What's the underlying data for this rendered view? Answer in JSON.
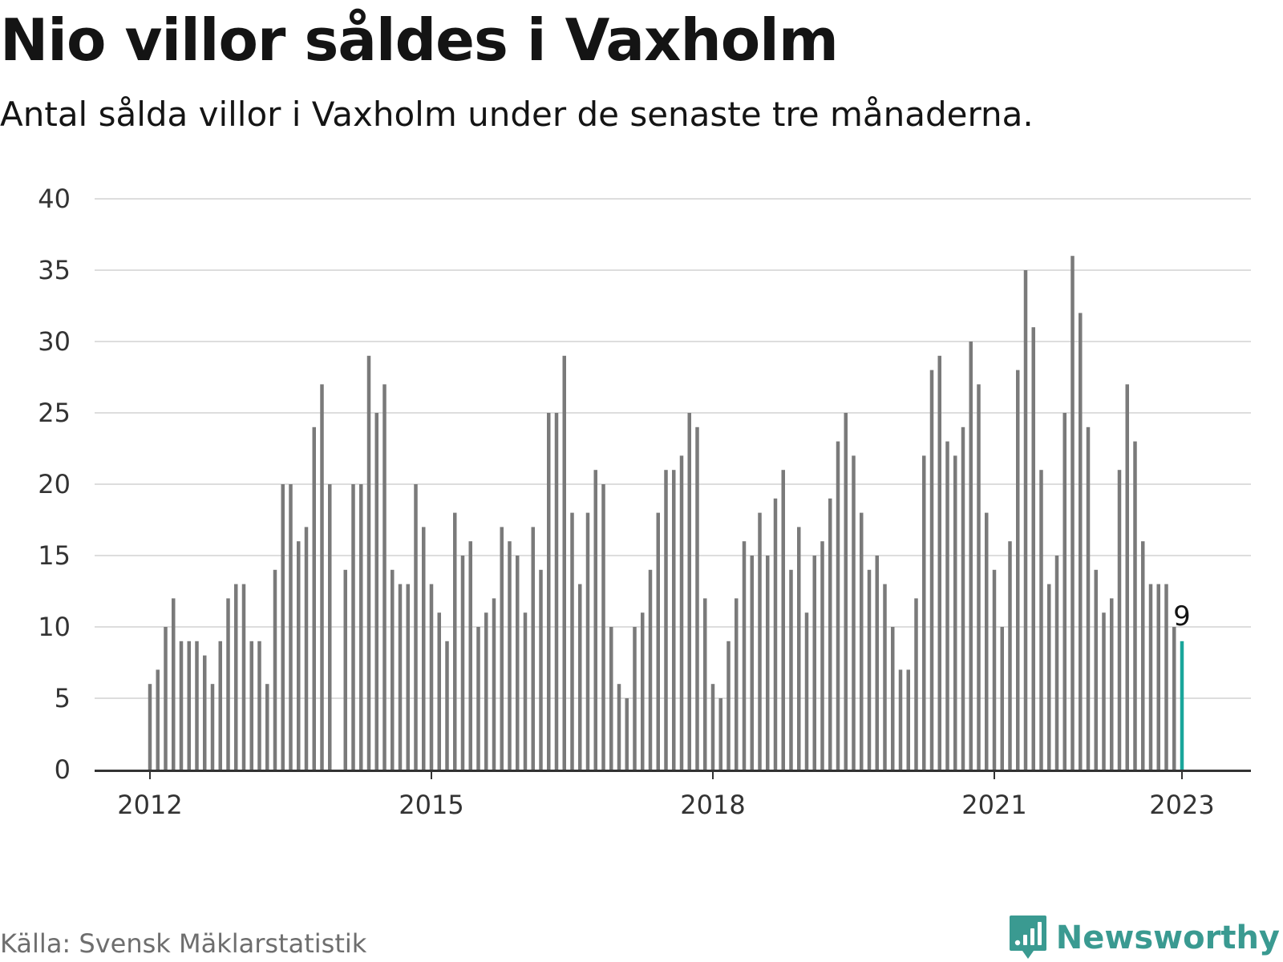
{
  "title": "Nio villor såldes i Vaxholm",
  "subtitle": "Antal sålda villor i Vaxholm under de senaste tre månaderna.",
  "source": "Källa: Svensk Mäklarstatistik",
  "logo_text": "Newsworthy",
  "colors": {
    "bar": "#7a7a7a",
    "highlight": "#1aa69b",
    "grid": "#dddddd",
    "axis": "#333333",
    "brand": "#3a9a91"
  },
  "chart_data": {
    "type": "bar",
    "title": "Nio villor såldes i Vaxholm",
    "xlabel": "",
    "ylabel": "",
    "ylim": [
      0,
      40
    ],
    "y_ticks": [
      0,
      5,
      10,
      15,
      20,
      25,
      30,
      35,
      40
    ],
    "x_ticks": [
      "2012",
      "2015",
      "2018",
      "2021",
      "2023"
    ],
    "x_tick_dates": [
      "2012-01",
      "2015-01",
      "2018-01",
      "2021-01",
      "2023-01"
    ],
    "grid": true,
    "highlight_last": true,
    "last_value_label": "9",
    "categories": [
      "2012-01",
      "2012-02",
      "2012-03",
      "2012-04",
      "2012-05",
      "2012-06",
      "2012-07",
      "2012-08",
      "2012-09",
      "2012-10",
      "2012-11",
      "2012-12",
      "2013-01",
      "2013-02",
      "2013-03",
      "2013-04",
      "2013-05",
      "2013-06",
      "2013-07",
      "2013-08",
      "2013-09",
      "2013-10",
      "2013-11",
      "2013-12",
      "2014-01",
      "2014-02",
      "2014-03",
      "2014-04",
      "2014-05",
      "2014-06",
      "2014-07",
      "2014-08",
      "2014-09",
      "2014-10",
      "2014-11",
      "2014-12",
      "2015-01",
      "2015-02",
      "2015-03",
      "2015-04",
      "2015-05",
      "2015-06",
      "2015-07",
      "2015-08",
      "2015-09",
      "2015-10",
      "2015-11",
      "2015-12",
      "2016-01",
      "2016-02",
      "2016-03",
      "2016-04",
      "2016-05",
      "2016-06",
      "2016-07",
      "2016-08",
      "2016-09",
      "2016-10",
      "2016-11",
      "2016-12",
      "2017-01",
      "2017-02",
      "2017-03",
      "2017-04",
      "2017-05",
      "2017-06",
      "2017-07",
      "2017-08",
      "2017-09",
      "2017-10",
      "2017-11",
      "2017-12",
      "2018-01",
      "2018-02",
      "2018-03",
      "2018-04",
      "2018-05",
      "2018-06",
      "2018-07",
      "2018-08",
      "2018-09",
      "2018-10",
      "2018-11",
      "2018-12",
      "2019-01",
      "2019-02",
      "2019-03",
      "2019-04",
      "2019-05",
      "2019-06",
      "2019-07",
      "2019-08",
      "2019-09",
      "2019-10",
      "2019-11",
      "2019-12",
      "2020-01",
      "2020-02",
      "2020-03",
      "2020-04",
      "2020-05",
      "2020-06",
      "2020-07",
      "2020-08",
      "2020-09",
      "2020-10",
      "2020-11",
      "2020-12",
      "2021-01",
      "2021-02",
      "2021-03",
      "2021-04",
      "2021-05",
      "2021-06",
      "2021-07",
      "2021-08",
      "2021-09",
      "2021-10",
      "2021-11",
      "2021-12",
      "2022-01",
      "2022-02",
      "2022-03",
      "2022-04",
      "2022-05",
      "2022-06",
      "2022-07",
      "2022-08",
      "2022-09",
      "2022-10",
      "2022-11",
      "2022-12",
      "2023-01"
    ],
    "values": [
      6,
      7,
      10,
      12,
      9,
      9,
      9,
      8,
      6,
      9,
      12,
      13,
      13,
      9,
      9,
      6,
      14,
      20,
      20,
      16,
      17,
      24,
      27,
      20,
      0,
      14,
      20,
      20,
      29,
      25,
      27,
      14,
      13,
      13,
      20,
      17,
      13,
      11,
      9,
      18,
      15,
      16,
      10,
      11,
      12,
      17,
      16,
      15,
      11,
      17,
      14,
      25,
      25,
      29,
      18,
      13,
      18,
      21,
      20,
      10,
      6,
      5,
      10,
      11,
      14,
      18,
      21,
      21,
      22,
      25,
      24,
      12,
      6,
      5,
      9,
      12,
      16,
      15,
      18,
      15,
      19,
      21,
      14,
      17,
      11,
      15,
      16,
      19,
      23,
      25,
      22,
      18,
      14,
      15,
      13,
      10,
      7,
      7,
      12,
      22,
      28,
      29,
      23,
      22,
      24,
      30,
      27,
      18,
      14,
      10,
      16,
      28,
      35,
      31,
      21,
      13,
      15,
      25,
      36,
      32,
      24,
      14,
      11,
      12,
      21,
      27,
      23,
      16,
      13,
      13,
      13,
      10,
      9
    ]
  }
}
